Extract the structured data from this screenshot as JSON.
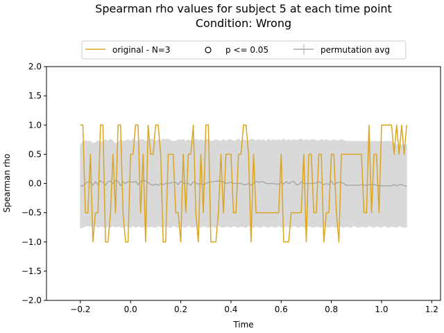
{
  "chart_data": {
    "type": "line",
    "title": "Spearman rho values for subject 5 at each time point",
    "subtitle": "Condition: Wrong",
    "xlabel": "Time",
    "ylabel": "Spearman rho",
    "xlim": [
      -0.335,
      1.235
    ],
    "ylim": [
      -2.0,
      2.0
    ],
    "x_ticks": [
      "−0.2",
      "0.0",
      "0.2",
      "0.4",
      "0.6",
      "0.8",
      "1.0",
      "1.2"
    ],
    "x_tick_values": [
      -0.2,
      0.0,
      0.2,
      0.4,
      0.6,
      0.8,
      1.0,
      1.2
    ],
    "y_ticks": [
      "2.0",
      "1.5",
      "1.0",
      "0.5",
      "0.0",
      "−0.5",
      "−1.0",
      "−1.5",
      "−2.0"
    ],
    "y_tick_values": [
      2.0,
      1.5,
      1.0,
      0.5,
      0.0,
      -0.5,
      -1.0,
      -1.5,
      -2.0
    ],
    "grid": false,
    "legend_position": "top-center, above plot",
    "legend": [
      "original - N=3",
      "p <= 0.05",
      "permutation avg"
    ],
    "colors": {
      "original": "#DAA520",
      "permutation": "#A9A9A9",
      "band": "#D9D9D9"
    },
    "series": [
      {
        "name": "original - N=3",
        "x": [
          -0.2,
          -0.19,
          -0.18,
          -0.17,
          -0.16,
          -0.15,
          -0.14,
          -0.13,
          -0.12,
          -0.11,
          -0.1,
          -0.09,
          -0.08,
          -0.07,
          -0.06,
          -0.05,
          -0.04,
          -0.03,
          -0.02,
          -0.01,
          0.0,
          0.01,
          0.02,
          0.03,
          0.04,
          0.05,
          0.06,
          0.07,
          0.08,
          0.09,
          0.1,
          0.11,
          0.12,
          0.13,
          0.14,
          0.15,
          0.16,
          0.17,
          0.18,
          0.19,
          0.2,
          0.21,
          0.22,
          0.23,
          0.24,
          0.25,
          0.26,
          0.27,
          0.28,
          0.29,
          0.3,
          0.31,
          0.32,
          0.33,
          0.34,
          0.35,
          0.36,
          0.37,
          0.38,
          0.39,
          0.4,
          0.41,
          0.42,
          0.43,
          0.44,
          0.45,
          0.46,
          0.47,
          0.48,
          0.49,
          0.5,
          0.51,
          0.52,
          0.53,
          0.54,
          0.55,
          0.56,
          0.57,
          0.58,
          0.59,
          0.6,
          0.61,
          0.62,
          0.63,
          0.64,
          0.65,
          0.66,
          0.67,
          0.68,
          0.69,
          0.7,
          0.71,
          0.72,
          0.73,
          0.74,
          0.75,
          0.76,
          0.77,
          0.78,
          0.79,
          0.8,
          0.81,
          0.82,
          0.83,
          0.84,
          0.85,
          0.86,
          0.87,
          0.88,
          0.89,
          0.9,
          0.91,
          0.92,
          0.93,
          0.94,
          0.95,
          0.96,
          0.97,
          0.98,
          0.99,
          1.0,
          1.01,
          1.02,
          1.03,
          1.04,
          1.05,
          1.06,
          1.07,
          1.08,
          1.09,
          1.1
        ],
        "values": [
          1.0,
          1.0,
          -0.5,
          -0.5,
          0.5,
          -1.0,
          -0.5,
          -0.5,
          1.0,
          1.0,
          -1.0,
          -1.0,
          -0.5,
          0.5,
          -0.5,
          1.0,
          1.0,
          -0.5,
          -1.0,
          -1.0,
          0.5,
          0.5,
          1.0,
          1.0,
          -0.5,
          0.5,
          -1.0,
          1.0,
          0.5,
          0.5,
          1.0,
          1.0,
          0.5,
          -1.0,
          -1.0,
          0.5,
          0.5,
          0.5,
          -0.5,
          -0.5,
          -1.0,
          0.5,
          -0.5,
          0.5,
          0.5,
          1.0,
          -0.5,
          -1.0,
          0.5,
          -0.5,
          1.0,
          1.0,
          -1.0,
          -1.0,
          -1.0,
          -0.5,
          0.5,
          -0.5,
          0.5,
          0.5,
          0.5,
          -0.5,
          -0.5,
          0.5,
          0.5,
          1.0,
          1.0,
          0.5,
          -1.0,
          0.5,
          -0.5,
          -0.5,
          -0.5,
          -0.5,
          -0.5,
          -0.5,
          -0.5,
          -0.5,
          -0.5,
          -0.5,
          0.5,
          -1.0,
          -1.0,
          -1.0,
          -0.5,
          -0.5,
          -0.5,
          -0.5,
          -0.5,
          0.5,
          -1.0,
          0.5,
          0.5,
          -0.5,
          -0.5,
          0.5,
          0.5,
          -1.0,
          -0.5,
          -0.5,
          0.5,
          0.5,
          -0.5,
          -1.0,
          0.5,
          0.5,
          0.5,
          0.5,
          0.5,
          0.5,
          0.5,
          0.5,
          0.5,
          -0.5,
          -0.5,
          1.0,
          -0.5,
          0.5,
          0.5,
          -0.5,
          1.0,
          1.0,
          1.0,
          1.0,
          1.0,
          0.5,
          1.0,
          0.5,
          1.0,
          0.5,
          1.0
        ]
      },
      {
        "name": "permutation avg",
        "x": [
          -0.2,
          -0.19,
          -0.18,
          -0.17,
          -0.16,
          -0.15,
          -0.14,
          -0.13,
          -0.12,
          -0.11,
          -0.1,
          -0.09,
          -0.08,
          -0.07,
          -0.06,
          -0.05,
          -0.04,
          -0.03,
          -0.02,
          -0.01,
          0.0,
          0.01,
          0.02,
          0.03,
          0.04,
          0.05,
          0.06,
          0.07,
          0.08,
          0.09,
          0.1,
          0.11,
          0.12,
          0.13,
          0.14,
          0.15,
          0.16,
          0.17,
          0.18,
          0.19,
          0.2,
          0.21,
          0.22,
          0.23,
          0.24,
          0.25,
          0.26,
          0.27,
          0.28,
          0.29,
          0.3,
          0.31,
          0.32,
          0.33,
          0.34,
          0.35,
          0.36,
          0.37,
          0.38,
          0.39,
          0.4,
          0.41,
          0.42,
          0.43,
          0.44,
          0.45,
          0.46,
          0.47,
          0.48,
          0.49,
          0.5,
          0.51,
          0.52,
          0.53,
          0.54,
          0.55,
          0.56,
          0.57,
          0.58,
          0.59,
          0.6,
          0.61,
          0.62,
          0.63,
          0.64,
          0.65,
          0.66,
          0.67,
          0.68,
          0.69,
          0.7,
          0.71,
          0.72,
          0.73,
          0.74,
          0.75,
          0.76,
          0.77,
          0.78,
          0.79,
          0.8,
          0.81,
          0.82,
          0.83,
          0.84,
          0.85,
          0.86,
          0.87,
          0.88,
          0.89,
          0.9,
          0.91,
          0.92,
          0.93,
          0.94,
          0.95,
          0.96,
          0.97,
          0.98,
          0.99,
          1.0,
          1.01,
          1.02,
          1.03,
          1.04,
          1.05,
          1.06,
          1.07,
          1.08,
          1.09,
          1.1
        ],
        "values": [
          -0.04,
          -0.04,
          0.0,
          0.03,
          0.02,
          -0.03,
          0.03,
          -0.02,
          0.05,
          0.02,
          -0.03,
          0.03,
          0.04,
          0.0,
          0.05,
          0.04,
          -0.04,
          0.03,
          0.0,
          0.03,
          0.03,
          0.02,
          0.04,
          -0.02,
          0.03,
          0.05,
          0.04,
          0.02,
          -0.02,
          -0.03,
          -0.01,
          -0.03,
          0.0,
          -0.02,
          0.0,
          0.0,
          0.01,
          0.02,
          0.02,
          -0.02,
          0.04,
          0.01,
          0.0,
          0.0,
          -0.03,
          0.03,
          0.01,
          -0.01,
          0.0,
          -0.02,
          0.0,
          0.02,
          0.03,
          0.03,
          0.04,
          0.04,
          0.04,
          0.03,
          0.0,
          0.01,
          0.02,
          0.0,
          0.0,
          0.0,
          0.0,
          -0.02,
          -0.02,
          0.0,
          -0.03,
          0.0,
          0.04,
          0.02,
          0.03,
          0.03,
          0.0,
          0.0,
          0.0,
          0.0,
          -0.01,
          -0.01,
          0.02,
          -0.01,
          0.03,
          0.0,
          0.02,
          0.04,
          -0.02,
          -0.02,
          0.03,
          0.0,
          0.0,
          0.0,
          0.0,
          0.0,
          0.01,
          0.03,
          0.01,
          -0.02,
          0.0,
          -0.02,
          0.04,
          -0.02,
          0.01,
          0.02,
          0.02,
          0.0,
          -0.03,
          -0.03,
          -0.03,
          -0.03,
          -0.03,
          -0.03,
          -0.02,
          -0.03,
          -0.03,
          -0.02,
          -0.02,
          -0.02,
          -0.03,
          -0.04,
          -0.04,
          -0.04,
          -0.04,
          -0.04,
          -0.04,
          -0.02,
          -0.04,
          -0.02,
          -0.02,
          -0.04,
          -0.04
        ]
      }
    ],
    "permutation_band": {
      "upper": [
        0.65,
        0.72,
        0.73,
        0.72,
        0.72,
        0.68,
        0.7,
        0.73,
        0.7,
        0.72,
        0.75,
        0.72,
        0.76,
        0.72,
        0.68,
        0.7,
        0.75,
        0.72,
        0.73,
        0.75,
        0.72,
        0.76,
        0.72,
        0.73,
        0.75,
        0.75,
        0.72,
        0.73,
        0.76,
        0.75,
        0.72,
        0.75,
        0.72,
        0.76,
        0.75,
        0.76,
        0.73,
        0.72,
        0.72,
        0.75,
        0.74,
        0.75,
        0.72,
        0.75,
        0.73,
        0.73,
        0.76,
        0.73,
        0.75,
        0.73,
        0.75,
        0.76,
        0.72,
        0.73,
        0.75,
        0.73,
        0.72,
        0.75,
        0.72,
        0.75,
        0.75,
        0.72,
        0.73,
        0.76,
        0.72,
        0.75,
        0.73,
        0.73,
        0.76,
        0.75,
        0.73,
        0.75,
        0.73,
        0.75,
        0.72,
        0.76,
        0.73,
        0.75,
        0.73,
        0.75,
        0.73,
        0.76,
        0.73,
        0.75,
        0.73,
        0.75,
        0.73,
        0.75,
        0.76,
        0.73,
        0.75,
        0.73,
        0.75,
        0.75,
        0.73,
        0.73,
        0.75,
        0.73,
        0.75,
        0.73,
        0.73,
        0.75,
        0.73,
        0.73,
        0.75,
        0.73,
        0.72,
        0.72,
        0.72,
        0.72,
        0.72,
        0.72,
        0.72,
        0.72,
        0.72,
        0.72,
        0.72,
        0.72,
        0.72,
        0.72,
        0.72,
        0.72,
        0.72,
        0.72,
        0.72,
        0.68,
        0.66,
        0.66,
        0.66,
        0.66,
        0.66
      ],
      "lower": [
        -0.76,
        -0.75,
        -0.73,
        -0.72,
        -0.73,
        -0.74,
        -0.72,
        -0.75,
        -0.73,
        -0.74,
        -0.75,
        -0.73,
        -0.75,
        -0.72,
        -0.75,
        -0.73,
        -0.74,
        -0.75,
        -0.73,
        -0.74,
        -0.75,
        -0.72,
        -0.75,
        -0.73,
        -0.74,
        -0.75,
        -0.72,
        -0.75,
        -0.73,
        -0.74,
        -0.75,
        -0.72,
        -0.74,
        -0.75,
        -0.73,
        -0.74,
        -0.75,
        -0.72,
        -0.74,
        -0.75,
        -0.73,
        -0.74,
        -0.75,
        -0.72,
        -0.74,
        -0.75,
        -0.73,
        -0.74,
        -0.75,
        -0.72,
        -0.74,
        -0.75,
        -0.73,
        -0.74,
        -0.75,
        -0.72,
        -0.74,
        -0.75,
        -0.73,
        -0.74,
        -0.75,
        -0.72,
        -0.74,
        -0.75,
        -0.73,
        -0.74,
        -0.75,
        -0.72,
        -0.74,
        -0.75,
        -0.73,
        -0.74,
        -0.75,
        -0.72,
        -0.74,
        -0.75,
        -0.73,
        -0.74,
        -0.75,
        -0.72,
        -0.74,
        -0.75,
        -0.73,
        -0.74,
        -0.75,
        -0.72,
        -0.74,
        -0.75,
        -0.73,
        -0.74,
        -0.75,
        -0.72,
        -0.74,
        -0.75,
        -0.73,
        -0.74,
        -0.75,
        -0.72,
        -0.74,
        -0.75,
        -0.73,
        -0.74,
        -0.75,
        -0.72,
        -0.74,
        -0.75,
        -0.73,
        -0.74,
        -0.75,
        -0.72,
        -0.74,
        -0.75,
        -0.73,
        -0.74,
        -0.75,
        -0.72,
        -0.74,
        -0.75,
        -0.73,
        -0.74,
        -0.75,
        -0.72,
        -0.74,
        -0.75,
        -0.73,
        -0.74,
        -0.75,
        -0.72,
        -0.74,
        -0.75,
        -0.75
      ]
    }
  }
}
